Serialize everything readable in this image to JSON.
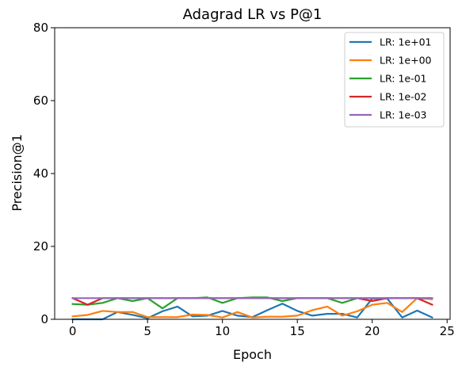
{
  "chart_data": {
    "type": "line",
    "title": "Adagrad LR vs P@1",
    "xlabel": "Epoch",
    "ylabel": "Precision@1",
    "xlim": [
      -1.2,
      25.2
    ],
    "ylim": [
      0,
      80
    ],
    "xticks": [
      0,
      5,
      10,
      15,
      20,
      25
    ],
    "yticks": [
      0,
      20,
      40,
      60,
      80
    ],
    "grid": false,
    "legend_position": "top-right",
    "x": [
      0,
      1,
      2,
      3,
      4,
      5,
      6,
      7,
      8,
      9,
      10,
      11,
      12,
      13,
      14,
      15,
      16,
      17,
      18,
      19,
      20,
      21,
      22,
      23,
      24
    ],
    "series": [
      {
        "name": "LR: 1e+01",
        "color": "#1f77b4",
        "values": [
          0.0,
          0.0,
          0.0,
          2.0,
          1.2,
          0.3,
          2.2,
          3.5,
          0.8,
          1.0,
          2.3,
          1.0,
          0.6,
          2.5,
          4.3,
          2.3,
          1.0,
          1.5,
          1.5,
          0.5,
          5.7,
          5.7,
          0.5,
          2.4,
          0.5
        ]
      },
      {
        "name": "LR: 1e+00",
        "color": "#ff7f0e",
        "values": [
          0.8,
          1.2,
          2.3,
          2.0,
          2.0,
          0.6,
          0.6,
          0.6,
          1.3,
          1.2,
          0.5,
          2.0,
          0.5,
          0.7,
          0.7,
          1.0,
          2.5,
          3.5,
          1.0,
          2.2,
          4.0,
          4.5,
          2.0,
          5.8,
          5.5
        ]
      },
      {
        "name": "LR: 1e-01",
        "color": "#2ca02c",
        "values": [
          4.2,
          4.0,
          4.5,
          5.8,
          5.0,
          5.8,
          3.0,
          5.8,
          5.8,
          6.0,
          4.5,
          5.8,
          6.0,
          6.0,
          5.0,
          5.8,
          5.8,
          5.8,
          4.5,
          5.8,
          5.8,
          5.8,
          5.8,
          5.8,
          5.8
        ]
      },
      {
        "name": "LR: 1e-02",
        "color": "#d62728",
        "values": [
          5.8,
          4.0,
          5.8,
          5.8,
          5.8,
          5.8,
          5.8,
          5.8,
          5.8,
          5.8,
          5.8,
          5.8,
          5.8,
          5.8,
          5.8,
          5.8,
          5.8,
          5.8,
          5.8,
          5.8,
          5.0,
          5.8,
          5.8,
          5.8,
          4.0
        ]
      },
      {
        "name": "LR: 1e-03",
        "color": "#9467bd",
        "values": [
          5.8,
          5.8,
          5.8,
          5.8,
          5.8,
          5.8,
          5.8,
          5.8,
          5.8,
          5.8,
          5.8,
          5.8,
          5.8,
          5.8,
          5.8,
          5.8,
          5.8,
          5.8,
          5.8,
          5.8,
          5.8,
          5.8,
          5.8,
          5.8,
          5.8
        ]
      }
    ]
  }
}
